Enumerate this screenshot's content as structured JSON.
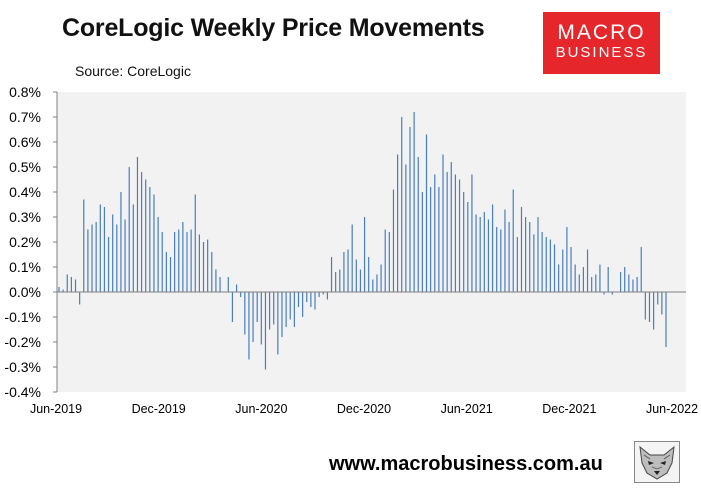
{
  "header": {
    "title": "CoreLogic Weekly Price Movements",
    "source": "Source: CoreLogic"
  },
  "logo": {
    "line1": "MACRO",
    "line2": "BUSINESS",
    "color": "#e5262b"
  },
  "footer": {
    "url": "www.macrobusiness.com.au"
  },
  "icons": {
    "logo_animal": "wolf-logo-icon"
  },
  "colors": {
    "bar": "#4a7ebb",
    "plot_bg": "#f2f2f2",
    "axis": "#808080"
  },
  "chart_data": {
    "type": "bar",
    "title": "CoreLogic Weekly Price Movements",
    "y_unit": "percent",
    "ylim": [
      -0.4,
      0.8
    ],
    "yticks": [
      "0.8%",
      "0.7%",
      "0.6%",
      "0.5%",
      "0.4%",
      "0.3%",
      "0.2%",
      "0.1%",
      "0.0%",
      "-0.1%",
      "-0.2%",
      "-0.3%",
      "-0.4%"
    ],
    "xtick_labels": [
      "Jun-2019",
      "Dec-2019",
      "Jun-2020",
      "Dec-2020",
      "Jun-2021",
      "Dec-2021",
      "Jun-2022"
    ],
    "x_start": "Jun-2019",
    "x_end": "Jun-2022",
    "grid": false,
    "series": [
      {
        "frequency": "weekly",
        "values": [
          0.02,
          0.01,
          0.07,
          0.06,
          0.05,
          -0.05,
          0.37,
          0.25,
          0.27,
          0.28,
          0.35,
          0.34,
          0.22,
          0.31,
          0.27,
          0.4,
          0.29,
          0.5,
          0.35,
          0.54,
          0.48,
          0.45,
          0.42,
          0.39,
          0.3,
          0.24,
          0.16,
          0.14,
          0.24,
          0.25,
          0.28,
          0.24,
          0.25,
          0.39,
          0.23,
          0.2,
          0.21,
          0.16,
          0.09,
          0.06,
          0.0,
          0.06,
          -0.12,
          0.03,
          -0.02,
          -0.17,
          -0.27,
          -0.2,
          -0.12,
          -0.21,
          -0.31,
          -0.15,
          -0.13,
          -0.25,
          -0.18,
          -0.14,
          -0.11,
          -0.14,
          -0.06,
          -0.1,
          -0.04,
          -0.06,
          -0.07,
          -0.02,
          -0.01,
          -0.03,
          0.14,
          0.08,
          0.09,
          0.16,
          0.17,
          0.27,
          0.13,
          0.09,
          0.3,
          0.14,
          0.05,
          0.07,
          0.11,
          0.25,
          0.24,
          0.41,
          0.55,
          0.7,
          0.51,
          0.66,
          0.72,
          0.54,
          0.4,
          0.63,
          0.42,
          0.47,
          0.42,
          0.55,
          0.48,
          0.52,
          0.47,
          0.45,
          0.4,
          0.36,
          0.47,
          0.31,
          0.3,
          0.32,
          0.29,
          0.35,
          0.26,
          0.25,
          0.33,
          0.28,
          0.41,
          0.22,
          0.34,
          0.3,
          0.28,
          0.23,
          0.3,
          0.24,
          0.22,
          0.21,
          0.19,
          0.11,
          0.17,
          0.26,
          0.18,
          0.11,
          0.07,
          0.1,
          0.17,
          0.06,
          0.07,
          0.11,
          -0.01,
          0.1,
          -0.01,
          0.0,
          0.08,
          0.1,
          0.07,
          0.05,
          0.06,
          0.18,
          -0.11,
          -0.12,
          -0.15,
          -0.05,
          -0.09,
          -0.22
        ]
      }
    ]
  }
}
